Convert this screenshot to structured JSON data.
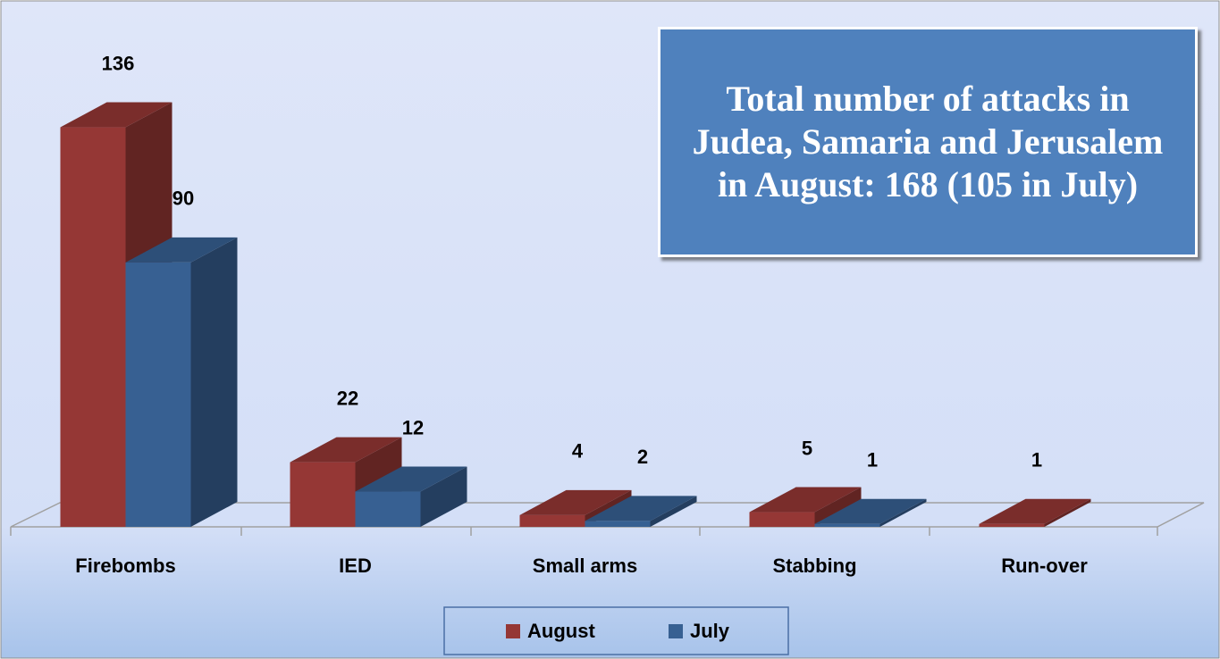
{
  "chart_data": {
    "type": "bar3d",
    "annotation": "Total number of attacks in Judea, Samaria and Jerusalem in August: 168 (105 in July)",
    "categories": [
      "Firebombs",
      "IED",
      "Small arms",
      "Stabbing",
      "Run-over"
    ],
    "series": [
      {
        "name": "August",
        "color": "#953735",
        "values": [
          136,
          22,
          4,
          5,
          1
        ]
      },
      {
        "name": "July",
        "color": "#376092",
        "values": [
          90,
          12,
          2,
          1,
          null
        ]
      }
    ],
    "legend": "bottom"
  }
}
